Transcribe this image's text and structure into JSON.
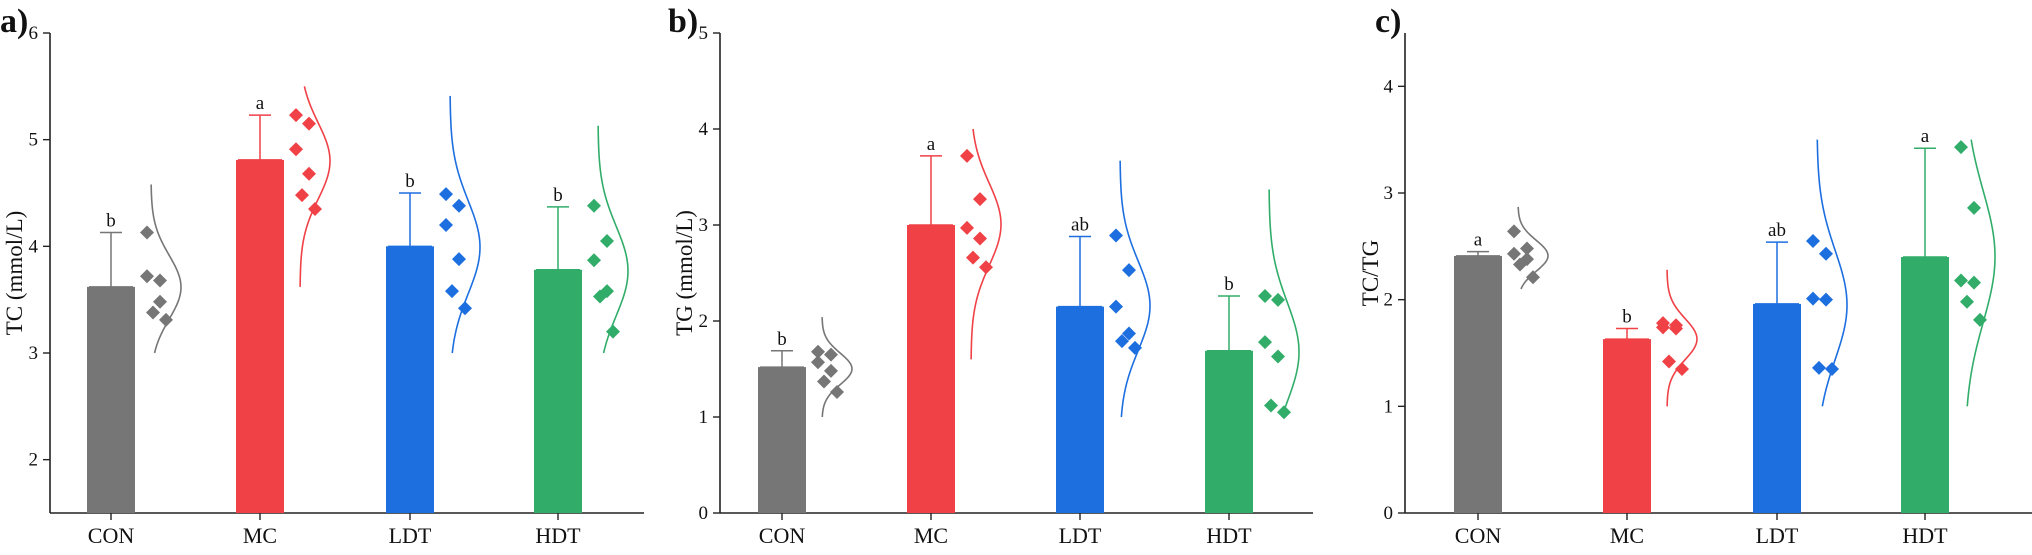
{
  "colors": {
    "CON": "#767676",
    "MC": "#ef4146",
    "LDT": "#1d6fe0",
    "HDT": "#31ad69",
    "axis": "#222222"
  },
  "chart_data": [
    {
      "type": "bar",
      "panel_label": "a)",
      "ylabel": "TC (mmol/L)",
      "ylim": [
        1.5,
        6
      ],
      "yticks": [
        2,
        3,
        4,
        5,
        6
      ],
      "categories": [
        "CON",
        "MC",
        "LDT",
        "HDT"
      ],
      "values": [
        3.62,
        4.81,
        4.0,
        3.78
      ],
      "errors": [
        0.51,
        0.42,
        0.5,
        0.59
      ],
      "significance": [
        "b",
        "a",
        "b",
        "b"
      ],
      "points": [
        [
          4.13,
          3.68,
          3.72,
          3.48,
          3.38,
          3.31
        ],
        [
          5.23,
          5.15,
          4.91,
          4.68,
          4.48,
          4.35
        ],
        [
          4.49,
          4.38,
          4.2,
          3.88,
          3.58,
          3.42
        ],
        [
          4.38,
          4.05,
          3.87,
          3.58,
          3.53,
          3.2
        ]
      ],
      "distribution_range": [
        [
          3.0,
          4.58
        ],
        [
          3.62,
          5.5
        ],
        [
          3.0,
          5.41
        ],
        [
          3.0,
          5.13
        ]
      ]
    },
    {
      "type": "bar",
      "panel_label": "b)",
      "ylabel": "TG (mmol/L)",
      "ylim": [
        0,
        5
      ],
      "yticks": [
        0,
        1,
        2,
        3,
        4,
        5
      ],
      "categories": [
        "CON",
        "MC",
        "LDT",
        "HDT"
      ],
      "values": [
        1.52,
        3.0,
        2.15,
        1.69
      ],
      "errors": [
        0.17,
        0.72,
        0.73,
        0.57
      ],
      "significance": [
        "b",
        "a",
        "ab",
        "b"
      ],
      "points": [
        [
          1.68,
          1.65,
          1.57,
          1.48,
          1.37,
          1.26
        ],
        [
          3.72,
          3.27,
          2.97,
          2.86,
          2.66,
          2.56
        ],
        [
          2.89,
          2.53,
          2.15,
          1.87,
          1.79,
          1.72
        ],
        [
          2.26,
          2.22,
          1.78,
          1.63,
          1.12,
          1.05
        ]
      ],
      "distribution_range": [
        [
          1.0,
          2.04
        ],
        [
          1.6,
          4.0
        ],
        [
          1.0,
          3.67
        ],
        [
          1.0,
          3.37
        ]
      ]
    },
    {
      "type": "bar",
      "panel_label": "c)",
      "ylabel": "TC/TG",
      "ylim": [
        0,
        4.5
      ],
      "yticks": [
        0,
        1,
        2,
        3,
        4
      ],
      "categories": [
        "CON",
        "MC",
        "LDT",
        "HDT"
      ],
      "values": [
        2.41,
        1.63,
        1.96,
        2.4
      ],
      "errors": [
        0.04,
        0.1,
        0.58,
        1.02
      ],
      "significance": [
        "a",
        "b",
        "ab",
        "a"
      ],
      "points": [
        [
          2.64,
          2.48,
          2.43,
          2.38,
          2.33,
          2.21
        ],
        [
          1.78,
          1.76,
          1.74,
          1.73,
          1.42,
          1.35
        ],
        [
          2.55,
          2.43,
          2.01,
          2.0,
          1.36,
          1.35
        ],
        [
          3.43,
          2.86,
          2.18,
          2.16,
          1.98,
          1.81
        ]
      ],
      "distribution_range": [
        [
          2.1,
          2.87
        ],
        [
          1.0,
          2.28
        ],
        [
          1.0,
          3.5
        ],
        [
          1.0,
          3.5
        ]
      ]
    }
  ]
}
